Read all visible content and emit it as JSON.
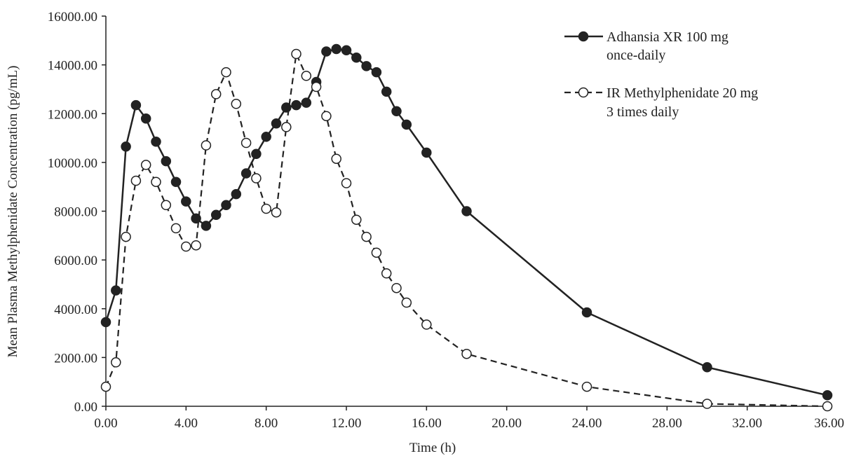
{
  "chart_data": {
    "type": "line",
    "title": "",
    "xlabel": "Time (h)",
    "ylabel": "Mean Plasma Methylphenidate Concentration (pg/mL)",
    "xlim": [
      0,
      36
    ],
    "ylim": [
      0,
      16000
    ],
    "x_ticks": [
      0,
      4,
      8,
      12,
      16,
      20,
      24,
      28,
      32,
      36
    ],
    "x_tick_labels": [
      "0.00",
      "4.00",
      "8.00",
      "12.00",
      "16.00",
      "20.00",
      "24.00",
      "28.00",
      "32.00",
      "36.00"
    ],
    "y_ticks": [
      0,
      2000,
      4000,
      6000,
      8000,
      10000,
      12000,
      14000,
      16000
    ],
    "y_tick_labels": [
      "0.00",
      "2000.00",
      "4000.00",
      "6000.00",
      "8000.00",
      "10000.00",
      "12000.00",
      "14000.00",
      "16000.00"
    ],
    "grid": false,
    "legend_position": "top-right",
    "series": [
      {
        "legend_lines": [
          "Adhansia XR 100 mg",
          "once-daily"
        ],
        "line_style": "solid",
        "marker": "filled-circle",
        "color": "#222222",
        "x": [
          0,
          0.5,
          1,
          1.5,
          2,
          2.5,
          3,
          3.5,
          4,
          4.5,
          5,
          5.5,
          6,
          6.5,
          7,
          7.5,
          8,
          8.5,
          9,
          9.5,
          10,
          10.5,
          11,
          11.5,
          12,
          12.5,
          13,
          13.5,
          14,
          14.5,
          15,
          16,
          18,
          24,
          30,
          36
        ],
        "y": [
          3450,
          4750,
          10650,
          12350,
          11800,
          10850,
          10050,
          9200,
          8400,
          7700,
          7400,
          7850,
          8250,
          8700,
          9550,
          10350,
          11050,
          11600,
          12250,
          12350,
          12450,
          13300,
          14550,
          14650,
          14600,
          14300,
          13950,
          13700,
          12900,
          12100,
          11550,
          10400,
          8000,
          3850,
          1600,
          450
        ]
      },
      {
        "legend_lines": [
          "IR Methylphenidate 20 mg",
          "3 times daily"
        ],
        "line_style": "dashed",
        "marker": "open-circle",
        "color": "#222222",
        "x": [
          0,
          0.5,
          1,
          1.5,
          2,
          2.5,
          3,
          3.5,
          4,
          4.5,
          5,
          5.5,
          6,
          6.5,
          7,
          7.5,
          8,
          8.5,
          9,
          9.5,
          10,
          10.5,
          11,
          11.5,
          12,
          12.5,
          13,
          13.5,
          14,
          14.5,
          15,
          16,
          18,
          24,
          30,
          36
        ],
        "y": [
          800,
          1800,
          6950,
          9250,
          9900,
          9200,
          8250,
          7300,
          6550,
          6600,
          10700,
          12800,
          13700,
          12400,
          10800,
          9350,
          8100,
          7950,
          11450,
          14450,
          13550,
          13100,
          11900,
          10150,
          9150,
          7650,
          6950,
          6300,
          5450,
          4850,
          4250,
          3350,
          2150,
          800,
          100,
          0
        ]
      }
    ]
  }
}
